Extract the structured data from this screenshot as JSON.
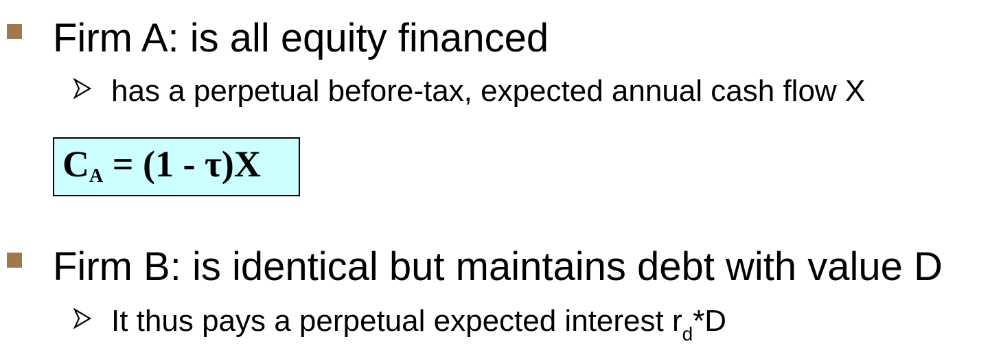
{
  "bullets": [
    {
      "text": "Firm A: is all equity financed",
      "sub": "has a perpetual before-tax, expected annual cash flow X"
    },
    {
      "text": "Firm B: is identical but maintains debt with value D",
      "sub_prefix": "It thus pays a perpetual expected interest r",
      "sub_subscript": "d",
      "sub_suffix": "*D"
    }
  ],
  "formula": {
    "lhs_base": "C",
    "lhs_subscript": "A",
    "rhs": " = (1 - τ)X"
  },
  "colors": {
    "bullet": "#a0784b",
    "formula_background": "#ccffff"
  },
  "icons": {
    "level1_bullet": "square",
    "level2_bullet": "outlined-arrow"
  }
}
